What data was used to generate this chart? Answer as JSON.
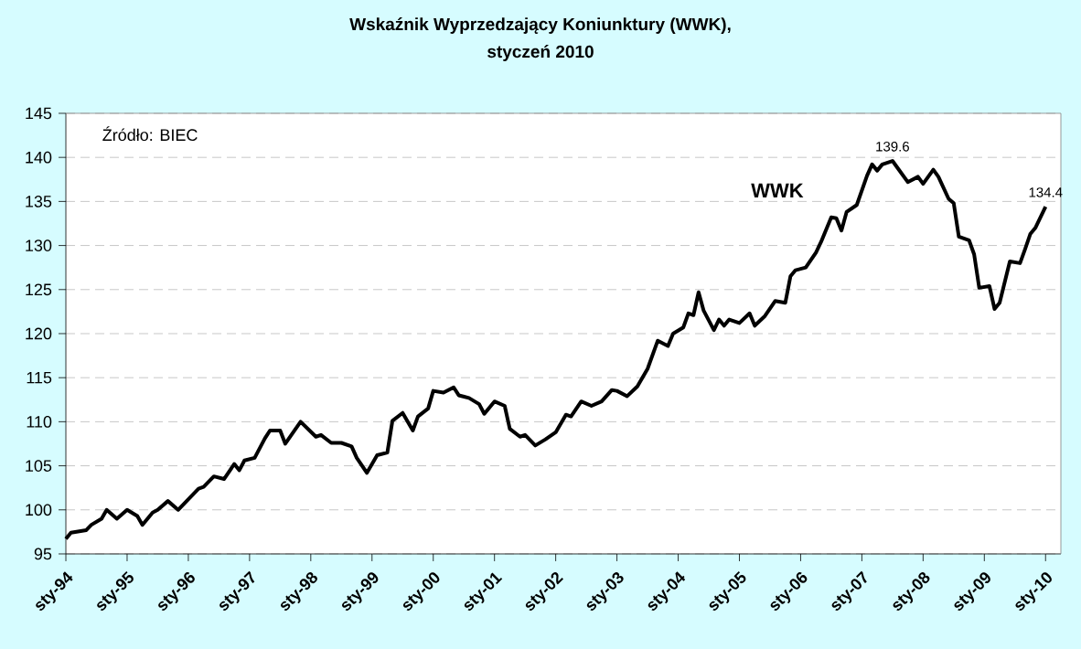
{
  "chart_data": {
    "type": "line",
    "title": "Wskaźnik Wyprzedzający Koniunktury (WWK),",
    "subtitle": "styczeń 2010",
    "x": [
      "1994-01",
      "1994-02",
      "1994-05",
      "1994-06",
      "1994-08",
      "1994-09",
      "1994-11",
      "1995-01",
      "1995-03",
      "1995-04",
      "1995-06",
      "1995-07",
      "1995-09",
      "1995-11",
      "1996-03",
      "1996-04",
      "1996-06",
      "1996-08",
      "1996-10",
      "1996-11",
      "1996-12",
      "1997-02",
      "1997-04",
      "1997-05",
      "1997-07",
      "1997-08",
      "1997-11",
      "1998-02",
      "1998-03",
      "1998-05",
      "1998-07",
      "1998-09",
      "1998-10",
      "1998-12",
      "1999-02",
      "1999-04",
      "1999-05",
      "1999-07",
      "1999-09",
      "1999-10",
      "1999-12",
      "2000-01",
      "2000-03",
      "2000-05",
      "2000-06",
      "2000-08",
      "2000-10",
      "2000-11",
      "2001-01",
      "2001-03",
      "2001-04",
      "2001-06",
      "2001-07",
      "2001-09",
      "2001-11",
      "2002-01",
      "2002-03",
      "2002-04",
      "2002-06",
      "2002-08",
      "2002-10",
      "2002-12",
      "2003-01",
      "2003-03",
      "2003-05",
      "2003-07",
      "2003-09",
      "2003-11",
      "2003-12",
      "2004-02",
      "2004-03",
      "2004-04",
      "2004-05",
      "2004-06",
      "2004-08",
      "2004-09",
      "2004-10",
      "2004-11",
      "2005-01",
      "2005-03",
      "2005-04",
      "2005-06",
      "2005-08",
      "2005-10",
      "2005-11",
      "2005-12",
      "2006-02",
      "2006-04",
      "2006-05",
      "2006-07",
      "2006-08",
      "2006-09",
      "2006-10",
      "2006-12",
      "2007-02",
      "2007-03",
      "2007-04",
      "2007-05",
      "2007-07",
      "2007-08",
      "2007-10",
      "2007-12",
      "2008-01",
      "2008-03",
      "2008-04",
      "2008-06",
      "2008-07",
      "2008-08",
      "2008-10",
      "2008-11",
      "2008-12",
      "2009-02",
      "2009-03",
      "2009-04",
      "2009-06",
      "2009-08",
      "2009-09",
      "2009-10",
      "2009-11",
      "2010-01"
    ],
    "series": [
      {
        "name": "WWK",
        "color": "#000000",
        "values": [
          96.7,
          97.4,
          97.7,
          98.3,
          99.0,
          100.0,
          99.0,
          100.0,
          99.3,
          98.3,
          99.7,
          100.0,
          101.0,
          100.0,
          102.4,
          102.6,
          103.8,
          103.5,
          105.2,
          104.5,
          105.6,
          105.9,
          108.1,
          109.0,
          109.0,
          107.5,
          110.0,
          108.3,
          108.5,
          107.6,
          107.6,
          107.2,
          105.9,
          104.2,
          106.2,
          106.5,
          110.1,
          111.0,
          109.0,
          110.6,
          111.5,
          113.5,
          113.3,
          113.9,
          113.0,
          112.7,
          112.0,
          110.9,
          112.3,
          111.8,
          109.2,
          108.3,
          108.5,
          107.3,
          108.0,
          108.8,
          110.8,
          110.6,
          112.3,
          111.8,
          112.3,
          113.6,
          113.5,
          112.9,
          114.0,
          116.0,
          119.2,
          118.6,
          120.0,
          120.7,
          122.3,
          122.1,
          124.7,
          122.6,
          120.4,
          121.6,
          120.9,
          121.6,
          121.2,
          122.3,
          120.9,
          122.0,
          123.7,
          123.5,
          126.5,
          127.2,
          127.5,
          129.2,
          130.4,
          133.2,
          133.1,
          131.7,
          133.8,
          134.6,
          137.9,
          139.2,
          138.5,
          139.2,
          139.6,
          138.8,
          137.2,
          137.8,
          137.0,
          138.6,
          137.8,
          135.3,
          134.8,
          131.0,
          130.6,
          129.0,
          125.2,
          125.4,
          122.8,
          123.5,
          128.2,
          128.0,
          129.6,
          131.3,
          132.0,
          134.4
        ]
      }
    ],
    "xlim": [
      "1994-01",
      "2010-04"
    ],
    "xticks": [
      {
        "value": "1994-01",
        "label": "sty-94"
      },
      {
        "value": "1995-01",
        "label": "sty-95"
      },
      {
        "value": "1996-01",
        "label": "sty-96"
      },
      {
        "value": "1997-01",
        "label": "sty-97"
      },
      {
        "value": "1998-01",
        "label": "sty-98"
      },
      {
        "value": "1999-01",
        "label": "sty-99"
      },
      {
        "value": "2000-01",
        "label": "sty-00"
      },
      {
        "value": "2001-01",
        "label": "sty-01"
      },
      {
        "value": "2002-01",
        "label": "sty-02"
      },
      {
        "value": "2003-01",
        "label": "sty-03"
      },
      {
        "value": "2004-01",
        "label": "sty-04"
      },
      {
        "value": "2005-01",
        "label": "sty-05"
      },
      {
        "value": "2006-01",
        "label": "sty-06"
      },
      {
        "value": "2007-01",
        "label": "sty-07"
      },
      {
        "value": "2008-01",
        "label": "sty-08"
      },
      {
        "value": "2009-01",
        "label": "sty-09"
      },
      {
        "value": "2010-01",
        "label": "sty-10"
      }
    ],
    "ylim": [
      95,
      145
    ],
    "yticks": [
      95,
      100,
      105,
      110,
      115,
      120,
      125,
      130,
      135,
      140,
      145
    ],
    "grid": "y",
    "annotations": [
      "Źródło: BIEC",
      {
        "text": "139.6",
        "x": "2007-07",
        "y": 139.6
      },
      {
        "text": "134.4",
        "x": "2010-01",
        "y": 134.4
      }
    ]
  }
}
